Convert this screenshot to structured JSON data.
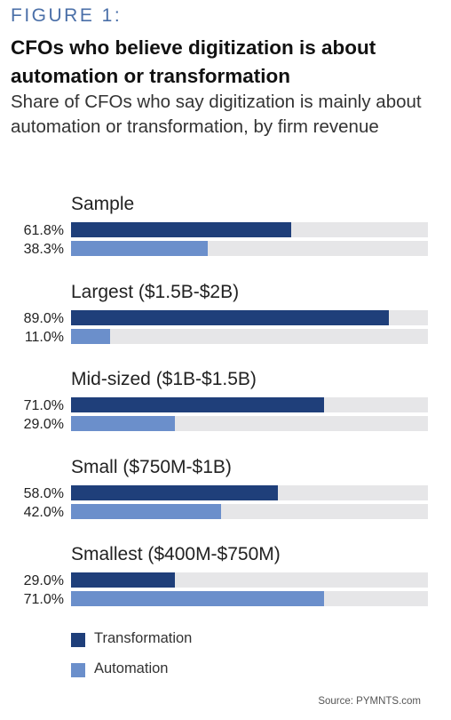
{
  "figure_label": "FIGURE 1:",
  "title": "CFOs who believe digitization is about automation or transformation",
  "subtitle": "Share of CFOs who say digitization is mainly about automation or transformation, by firm revenue",
  "colors": {
    "transformation": "#1f3f7a",
    "automation": "#6b8fcb",
    "track": "#e6e6e8"
  },
  "chart_data": {
    "type": "bar",
    "orientation": "horizontal",
    "xlim": [
      0,
      100
    ],
    "categories": [
      "Sample",
      "Largest ($1.5B-$2B)",
      "Mid-sized ($1B-$1.5B)",
      "Small ($750M-$1B)",
      "Smallest ($400M-$750M)"
    ],
    "series": [
      {
        "name": "Transformation",
        "values": [
          61.8,
          89.0,
          71.0,
          58.0,
          29.0
        ],
        "labels": [
          "61.8%",
          "89.0%",
          "71.0%",
          "58.0%",
          "29.0%"
        ]
      },
      {
        "name": "Automation",
        "values": [
          38.3,
          11.0,
          29.0,
          42.0,
          71.0
        ],
        "labels": [
          "38.3%",
          "11.0%",
          "29.0%",
          "42.0%",
          "71.0%"
        ]
      }
    ],
    "legend": {
      "placement": "bottom-left",
      "entries": [
        "Transformation",
        "Automation"
      ]
    }
  },
  "source": "Source: PYMNTS.com"
}
